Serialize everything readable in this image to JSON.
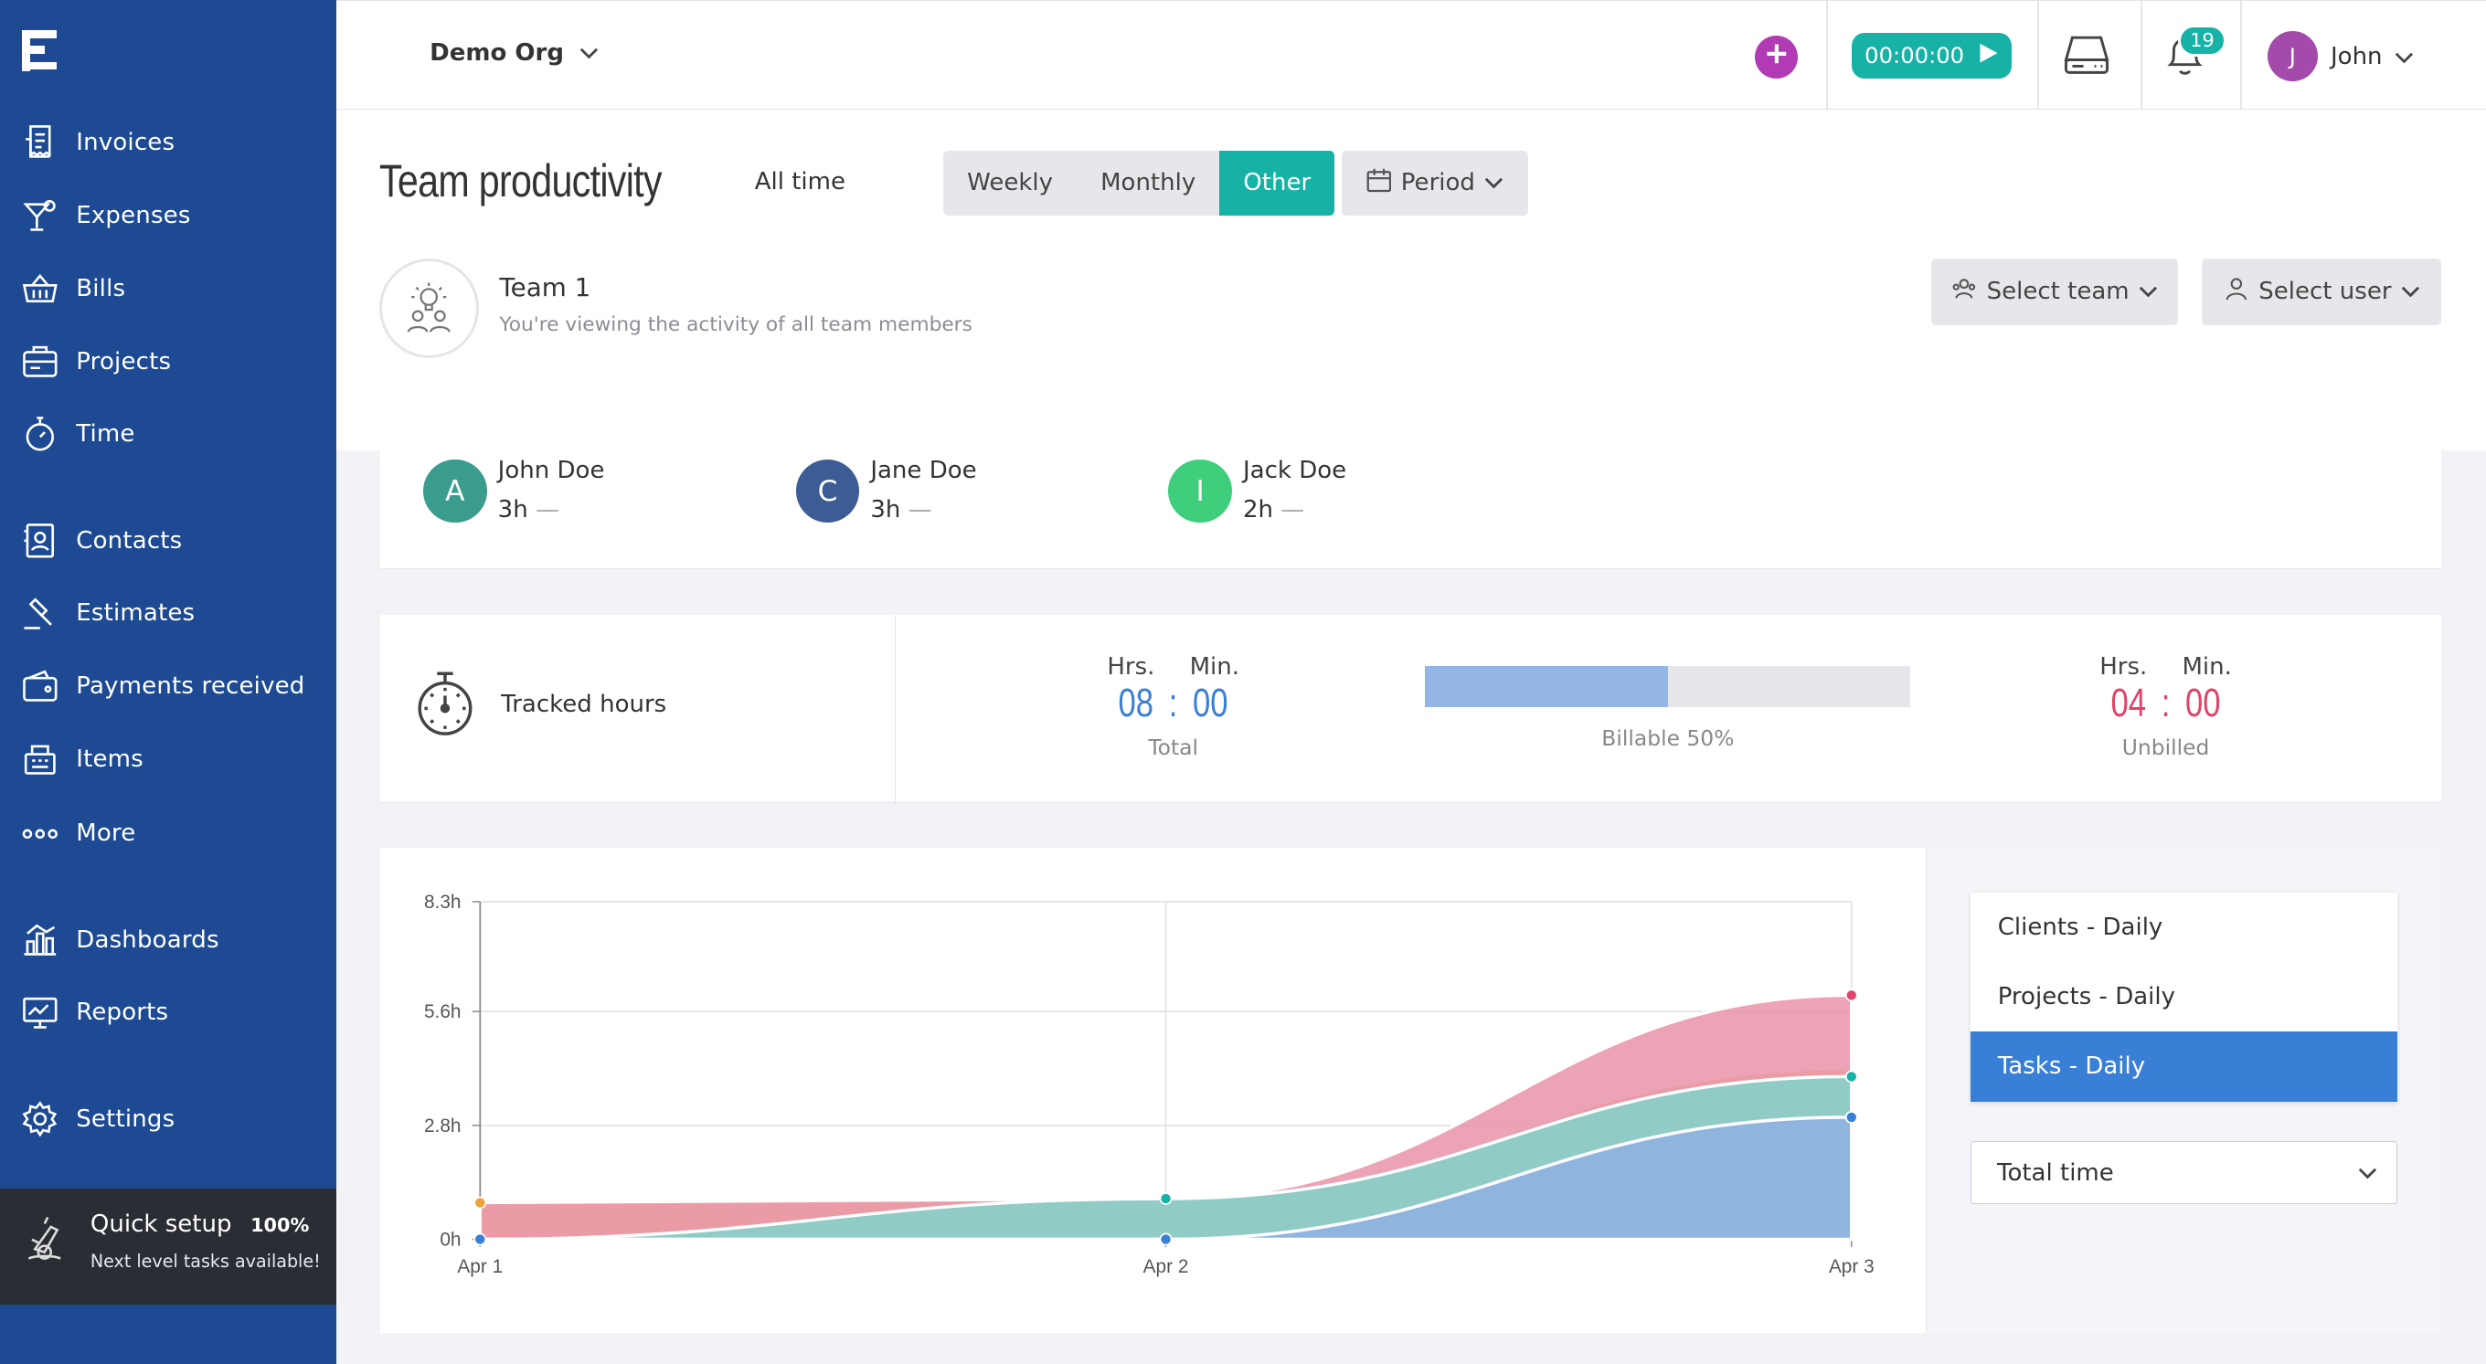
{
  "sidebar": {
    "items": [
      {
        "label": "Invoices",
        "icon": "invoice-icon"
      },
      {
        "label": "Expenses",
        "icon": "cocktail-icon"
      },
      {
        "label": "Bills",
        "icon": "basket-icon"
      },
      {
        "label": "Projects",
        "icon": "briefcase-icon"
      },
      {
        "label": "Time",
        "icon": "stopwatch-icon"
      },
      {
        "label": "Contacts",
        "icon": "contacts-icon"
      },
      {
        "label": "Estimates",
        "icon": "gavel-icon"
      },
      {
        "label": "Payments received",
        "icon": "wallet-icon"
      },
      {
        "label": "Items",
        "icon": "register-icon"
      },
      {
        "label": "More",
        "icon": "more-dots-icon"
      },
      {
        "label": "Dashboards",
        "icon": "dashboard-icon"
      },
      {
        "label": "Reports",
        "icon": "reports-icon"
      },
      {
        "label": "Settings",
        "icon": "gear-icon"
      }
    ],
    "quick_setup": {
      "title": "Quick setup",
      "percent": "100%",
      "subtitle": "Next level tasks available!"
    }
  },
  "topbar": {
    "org": "Demo Org",
    "timer": "00:00:00",
    "notifications_count": "19",
    "user_initial": "J",
    "user_name": "John"
  },
  "header": {
    "title": "Team productivity",
    "all_time": "All time",
    "periods": [
      "Weekly",
      "Monthly",
      "Other"
    ],
    "active_period": "Other",
    "period_button": "Period",
    "team_name": "Team 1",
    "team_subtitle": "You're viewing the activity of all team members",
    "select_team": "Select team",
    "select_user": "Select user"
  },
  "members": [
    {
      "initial": "A",
      "name": "John Doe",
      "hours": "3h",
      "color": "#3a9c8c"
    },
    {
      "initial": "C",
      "name": "Jane Doe",
      "hours": "3h",
      "color": "#3d5c94"
    },
    {
      "initial": "I",
      "name": "Jack Doe",
      "hours": "2h",
      "color": "#3fcf7c"
    }
  ],
  "tracked": {
    "label": "Tracked hours",
    "hrs_label": "Hrs.",
    "min_label": "Min.",
    "total_hours": "08",
    "total_minutes": "00",
    "total_caption": "Total",
    "billable_percent": 50,
    "billable_caption": "Billable 50%",
    "unbilled_hours": "04",
    "unbilled_minutes": "00",
    "unbilled_caption": "Unbilled",
    "total_color": "#3a7fd6",
    "unbilled_color": "#e0446a"
  },
  "chart_data": {
    "type": "area",
    "categories": [
      "Apr 1",
      "Apr 2",
      "Apr 3"
    ],
    "y_ticks": [
      "0h",
      "2.8h",
      "5.6h",
      "8.3h"
    ],
    "ylim": [
      0,
      8.3
    ],
    "grid": true,
    "series": [
      {
        "values": [
          0,
          0,
          3.0
        ],
        "color": "#8fb0e3"
      },
      {
        "values": [
          0,
          1.0,
          4.0
        ],
        "color": "#7dd7cc"
      },
      {
        "values": [
          0.9,
          1.0,
          6.0
        ],
        "color": "#e88fa6"
      },
      {
        "values": [
          0.9,
          1.0,
          4.2
        ],
        "color": "#f0c894"
      }
    ]
  },
  "side": {
    "list": [
      "Clients - Daily",
      "Projects - Daily",
      "Tasks - Daily"
    ],
    "active": "Tasks - Daily",
    "dropdown": "Total time"
  }
}
